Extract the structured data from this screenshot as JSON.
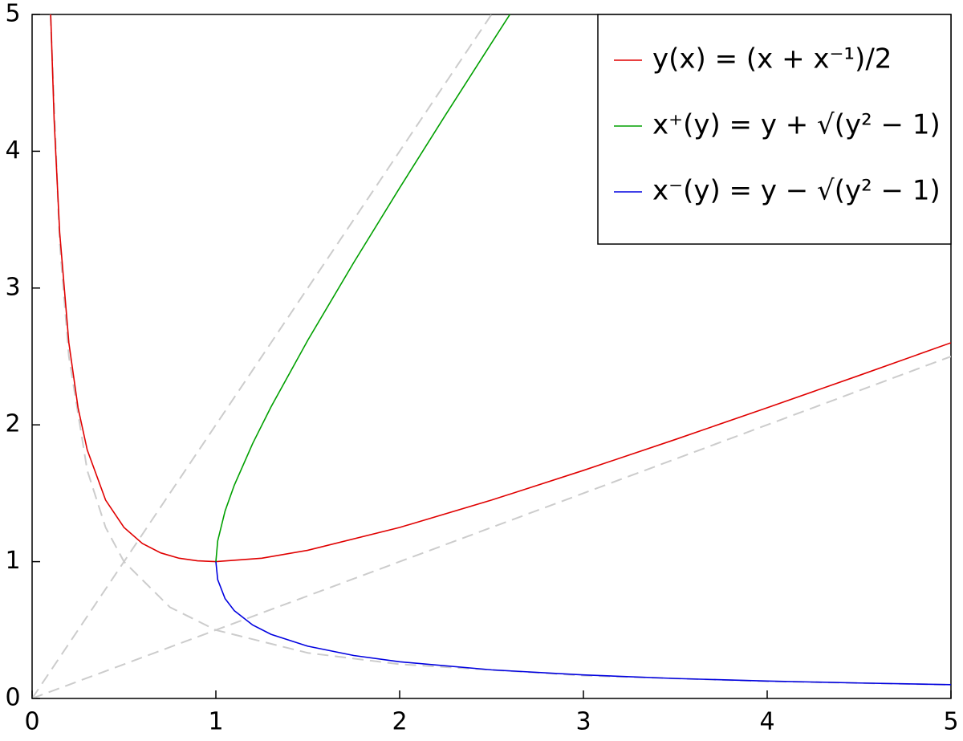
{
  "chart_data": {
    "type": "line",
    "xlim": [
      0,
      5
    ],
    "ylim": [
      0,
      5
    ],
    "xticks": [
      0,
      1,
      2,
      3,
      4,
      5
    ],
    "yticks": [
      0,
      1,
      2,
      3,
      4,
      5
    ],
    "legend": "upper-right",
    "series": [
      {
        "name": "y(x) = (x + x⁻¹)/2",
        "color": "#e00000",
        "x": [
          0.1,
          0.12,
          0.15,
          0.2,
          0.25,
          0.3,
          0.4,
          0.5,
          0.6,
          0.7,
          0.8,
          0.9,
          1,
          1.25,
          1.5,
          2,
          2.5,
          3,
          3.5,
          4,
          4.5,
          5
        ],
        "values": [
          5.05,
          4.227,
          3.408,
          2.6,
          2.125,
          1.817,
          1.45,
          1.25,
          1.133,
          1.064,
          1.025,
          1.006,
          1,
          1.025,
          1.083,
          1.25,
          1.45,
          1.667,
          1.893,
          2.125,
          2.361,
          2.6
        ]
      },
      {
        "name": "x⁺(y) = y + √(y² − 1)",
        "color": "#00a000",
        "x": [
          1,
          1.01,
          1.05,
          1.1,
          1.2,
          1.3,
          1.5,
          1.75,
          2,
          2.25,
          2.5,
          2.6
        ],
        "values": [
          1,
          1.152,
          1.37,
          1.558,
          1.863,
          2.131,
          2.618,
          3.186,
          3.732,
          4.266,
          4.791,
          5
        ]
      },
      {
        "name": "x⁻(y) = y − √(y² − 1)",
        "color": "#0000e0",
        "x": [
          1,
          1.01,
          1.05,
          1.1,
          1.2,
          1.3,
          1.5,
          1.75,
          2,
          2.5,
          3,
          3.5,
          4,
          4.5,
          5
        ],
        "values": [
          1,
          0.868,
          0.73,
          0.642,
          0.537,
          0.469,
          0.382,
          0.314,
          0.268,
          0.209,
          0.172,
          0.146,
          0.127,
          0.113,
          0.101
        ]
      },
      {
        "color": "#cccccc",
        "dashed": true,
        "x": [
          0,
          2.5
        ],
        "values": [
          0,
          5
        ]
      },
      {
        "color": "#cccccc",
        "dashed": true,
        "x": [
          0,
          5
        ],
        "values": [
          0,
          2.5
        ]
      },
      {
        "color": "#cccccc",
        "dashed": true,
        "x": [
          0.1,
          0.15,
          0.2,
          0.3,
          0.4,
          0.5,
          0.75,
          1,
          1.5,
          2,
          3,
          4,
          5
        ],
        "values": [
          5,
          3.333,
          2.5,
          1.667,
          1.25,
          1,
          0.667,
          0.5,
          0.333,
          0.25,
          0.167,
          0.125,
          0.1
        ]
      }
    ]
  }
}
